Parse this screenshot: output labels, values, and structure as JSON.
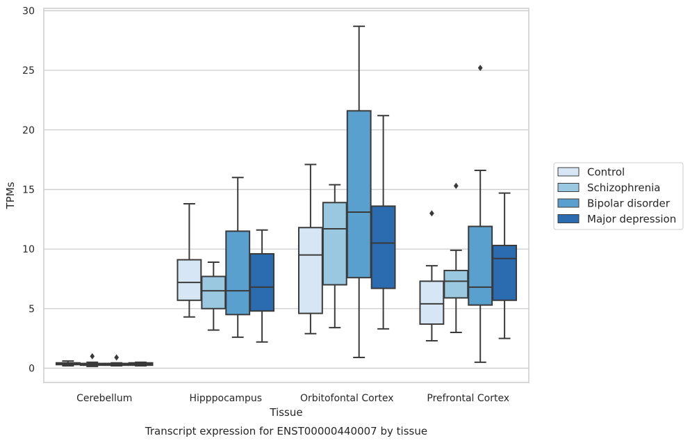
{
  "chart_data": {
    "type": "boxplot",
    "title": "Transcript expression for ENST00000440007 by tissue",
    "xlabel": "Tissue",
    "ylabel": "TPMs",
    "ylim": [
      -1.2,
      30.2
    ],
    "yticks": [
      0,
      5,
      10,
      15,
      20,
      25,
      30
    ],
    "grid": "horizontal",
    "legend_position": "right-center",
    "categories": [
      "Cerebellum",
      "Hipppocampus",
      "Orbitofontal Cortex",
      "Prefrontal Cortex"
    ],
    "series": [
      {
        "name": "Control",
        "color": "#d6e6f4",
        "boxes": [
          {
            "whislo": 0.2,
            "q1": 0.3,
            "med": 0.35,
            "q3": 0.45,
            "whishi": 0.6,
            "fliers": []
          },
          {
            "whislo": 4.3,
            "q1": 5.7,
            "med": 7.2,
            "q3": 9.1,
            "whishi": 13.8,
            "fliers": []
          },
          {
            "whislo": 2.9,
            "q1": 4.6,
            "med": 9.5,
            "q3": 11.8,
            "whishi": 17.1,
            "fliers": []
          },
          {
            "whislo": 2.3,
            "q1": 3.7,
            "med": 5.4,
            "q3": 7.3,
            "whishi": 8.6,
            "fliers": [
              13.0
            ]
          }
        ]
      },
      {
        "name": "Schizophrenia",
        "color": "#9ac8e0",
        "boxes": [
          {
            "whislo": 0.15,
            "q1": 0.25,
            "med": 0.3,
            "q3": 0.4,
            "whishi": 0.5,
            "fliers": [
              1.0
            ]
          },
          {
            "whislo": 3.2,
            "q1": 5.0,
            "med": 6.5,
            "q3": 7.7,
            "whishi": 8.9,
            "fliers": []
          },
          {
            "whislo": 3.4,
            "q1": 7.0,
            "med": 11.7,
            "q3": 13.9,
            "whishi": 15.4,
            "fliers": []
          },
          {
            "whislo": 3.0,
            "q1": 5.9,
            "med": 7.3,
            "q3": 8.2,
            "whishi": 9.9,
            "fliers": [
              15.3
            ]
          }
        ]
      },
      {
        "name": "Bipolar disorder",
        "color": "#5aa0ce",
        "boxes": [
          {
            "whislo": 0.2,
            "q1": 0.25,
            "med": 0.3,
            "q3": 0.4,
            "whishi": 0.45,
            "fliers": [
              0.9
            ]
          },
          {
            "whislo": 2.6,
            "q1": 4.5,
            "med": 6.5,
            "q3": 11.5,
            "whishi": 16.0,
            "fliers": []
          },
          {
            "whislo": 0.9,
            "q1": 7.6,
            "med": 13.1,
            "q3": 21.6,
            "whishi": 28.7,
            "fliers": []
          },
          {
            "whislo": 0.5,
            "q1": 5.3,
            "med": 6.8,
            "q3": 11.9,
            "whishi": 16.6,
            "fliers": [
              25.2
            ]
          }
        ]
      },
      {
        "name": "Major depression",
        "color": "#2b6bb0",
        "boxes": [
          {
            "whislo": 0.2,
            "q1": 0.25,
            "med": 0.35,
            "q3": 0.45,
            "whishi": 0.5,
            "fliers": []
          },
          {
            "whislo": 2.2,
            "q1": 4.8,
            "med": 6.8,
            "q3": 9.6,
            "whishi": 11.6,
            "fliers": []
          },
          {
            "whislo": 3.3,
            "q1": 6.7,
            "med": 10.5,
            "q3": 13.6,
            "whishi": 21.2,
            "fliers": []
          },
          {
            "whislo": 2.5,
            "q1": 5.7,
            "med": 9.2,
            "q3": 10.3,
            "whishi": 14.7,
            "fliers": []
          }
        ]
      }
    ]
  }
}
